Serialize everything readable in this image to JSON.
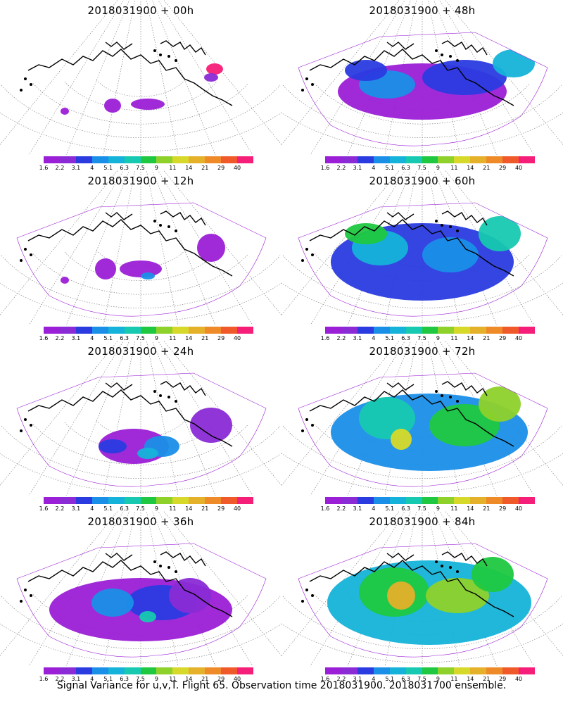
{
  "panels": [
    {
      "title": "2018031900  + 00h",
      "level": 0
    },
    {
      "title": "2018031900  + 48h",
      "level": 4
    },
    {
      "title": "2018031900  + 12h",
      "level": 1
    },
    {
      "title": "2018031900  + 60h",
      "level": 5
    },
    {
      "title": "2018031900  + 24h",
      "level": 2
    },
    {
      "title": "2018031900  + 72h",
      "level": 6
    },
    {
      "title": "2018031900  + 36h",
      "level": 3
    },
    {
      "title": "2018031900  + 84h",
      "level": 7
    }
  ],
  "colorbar": {
    "labels": [
      "1.6",
      "2.2",
      "3.1",
      "4",
      "5.1",
      "6.3",
      "7.5",
      "9",
      "11",
      "14",
      "21",
      "29",
      "40"
    ],
    "colors": [
      "#9b1fd6",
      "#8a2bd6",
      "#2a3be0",
      "#1a8fe8",
      "#15b3d9",
      "#17c9b0",
      "#1fc840",
      "#8ed12a",
      "#d7d92a",
      "#e5b02a",
      "#ee8a28",
      "#f05a2a",
      "#f51e78"
    ]
  },
  "caption": "Signal Variance for u,v,T. Flight 65. Observation time 2018031900. 2018031700 ensemble."
}
